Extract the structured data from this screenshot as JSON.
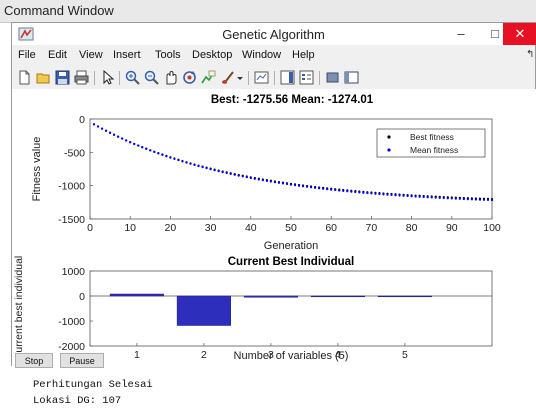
{
  "command_window": {
    "title": "Command Window"
  },
  "window": {
    "title": "Genetic Algorithm",
    "buttons": {
      "minimize": "–",
      "maximize": "□",
      "close": "✕"
    }
  },
  "menu": {
    "items": [
      "File",
      "Edit",
      "View",
      "Insert",
      "Tools",
      "Desktop",
      "Window",
      "Help"
    ]
  },
  "toolbar_icons": [
    "new-figure-icon",
    "open-file-icon",
    "save-icon",
    "print-icon",
    "pointer-icon",
    "zoom-in-icon",
    "zoom-out-icon",
    "pan-icon",
    "rotate-icon",
    "data-cursor-icon",
    "brush-icon",
    "link-icon",
    "colorbar-icon",
    "legend-icon",
    "hide-plot-tools-icon",
    "show-plot-tools-icon"
  ],
  "colors": {
    "best": "#000000",
    "mean": "#0000ff",
    "bar": "#2e2ebd"
  },
  "buttons": {
    "stop": "Stop",
    "pause": "Pause"
  },
  "chart_data": [
    {
      "type": "scatter",
      "title": "Best: -1275.56 Mean: -1274.01",
      "xlabel": "Generation",
      "ylabel": "Fitness value",
      "xlim": [
        0,
        100
      ],
      "ylim": [
        -1500,
        0
      ],
      "xticks": [
        "0",
        "10",
        "20",
        "30",
        "40",
        "50",
        "60",
        "70",
        "80",
        "90",
        "100"
      ],
      "yticks": [
        "0",
        "-500",
        "-1000",
        "-1500"
      ],
      "legend_position": "top-right",
      "series": [
        {
          "name": "Best fitness",
          "color": "#000000",
          "start": -80,
          "end": -1275.56,
          "rate": 0.028
        },
        {
          "name": "Mean fitness",
          "color": "#0000ff",
          "start": -60,
          "end": -1274.01,
          "rate": 0.028
        }
      ]
    },
    {
      "type": "bar",
      "title": "Current Best Individual",
      "xlabel": "Number of variables (5)",
      "ylabel": "Current best individual",
      "categories": [
        "1",
        "2",
        "3",
        "4",
        "5"
      ],
      "values": [
        80,
        -1180,
        -50,
        -15,
        -5
      ],
      "ylim": [
        -2000,
        1000
      ],
      "yticks": [
        "1000",
        "0",
        "-1000",
        "-2000"
      ]
    }
  ],
  "output": {
    "line1": "Perhitungan Selesai",
    "line2": "Lokasi DG: 107"
  }
}
